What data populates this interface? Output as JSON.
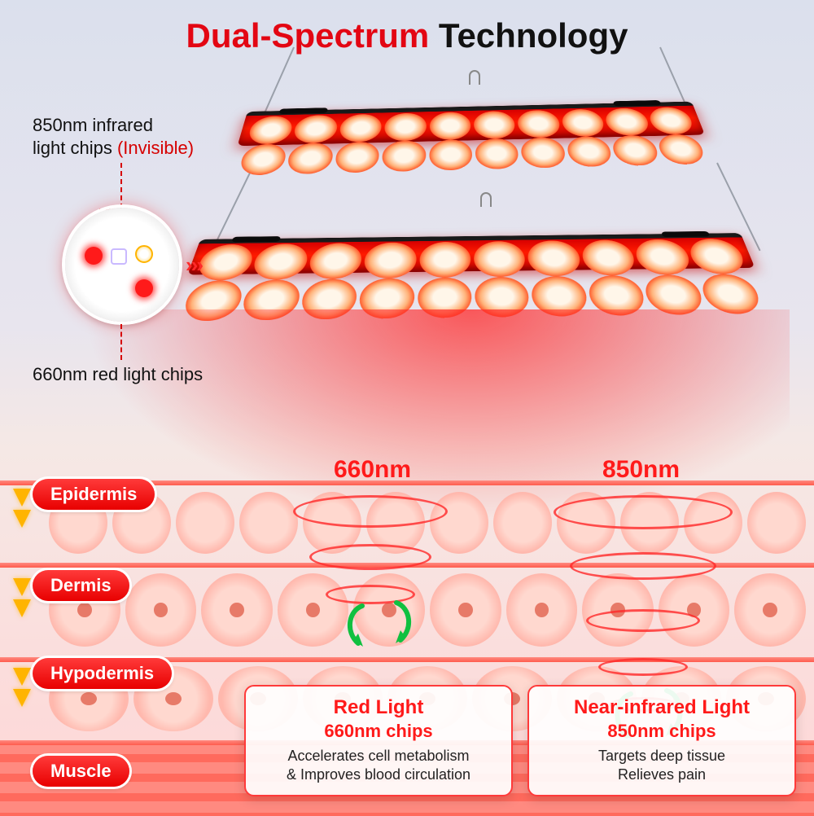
{
  "colors": {
    "title_red": "#e30613",
    "title_black": "#111111",
    "accent_red": "#ff1a1a",
    "tag_red_top": "#ff3a3a",
    "tag_red_bottom": "#e80000",
    "arrow_yellow": "#ffb400",
    "curl_green": "#10c040",
    "panel_dark": "#1a1a1a",
    "info_border": "#ff3a3a",
    "background_top": "#dbe0ed",
    "background_bottom": "#ffd6d6"
  },
  "title": {
    "red": "Dual-Spectrum",
    "black": " Technology"
  },
  "callouts": {
    "ir": {
      "line1": "850nm infrared",
      "line2": "light chips ",
      "paren": "(Invisible)"
    },
    "red": {
      "line1": "660nm red light chips"
    }
  },
  "chevrons": "›››",
  "wave_labels": {
    "left": "660nm",
    "right": "850nm"
  },
  "layers": [
    {
      "name": "Epidermis"
    },
    {
      "name": "Dermis"
    },
    {
      "name": "Hypodermis"
    },
    {
      "name": "Muscle"
    }
  ],
  "panels": {
    "led_cols": 10,
    "led_rows": 2
  },
  "info_left": {
    "title": "Red Light",
    "subtitle": "660nm chips",
    "line1": "Accelerates cell metabolism",
    "line2": "& Improves blood circulation"
  },
  "info_right": {
    "title": "Near-infrared Light",
    "subtitle": "850nm chips",
    "line1": "Targets deep tissue",
    "line2": "Relieves pain"
  },
  "skin": {
    "epidermis_cells": 12,
    "dermis_cells": 10,
    "hypodermis_cells": 9
  }
}
